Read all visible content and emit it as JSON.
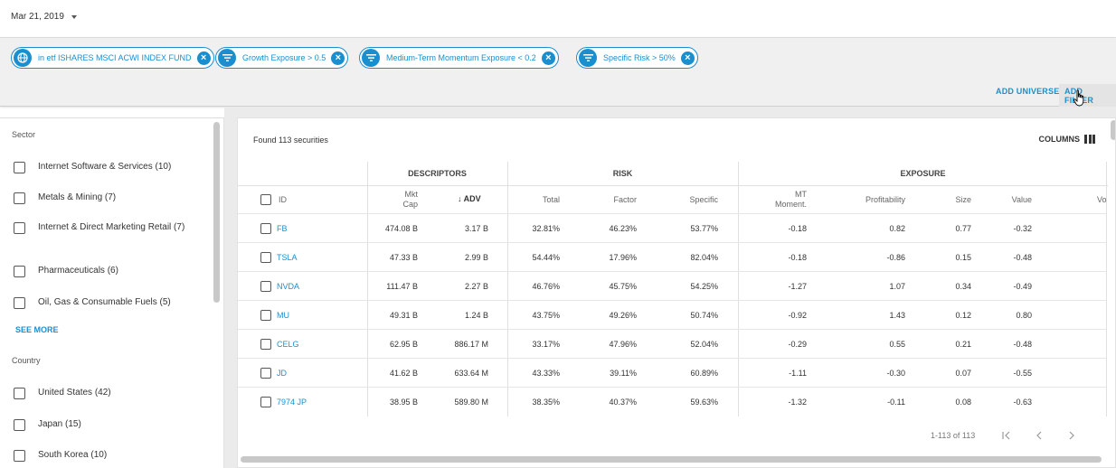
{
  "date_selector": {
    "value": "Mar 21, 2019"
  },
  "filters": [
    {
      "label": "in etf ISHARES MSCI ACWI INDEX FUND",
      "icon": "globe-icon"
    },
    {
      "label": "Growth Exposure > 0.5",
      "icon": "filter-icon"
    },
    {
      "label": "Medium-Term Momentum Exposure < 0.2",
      "icon": "filter-icon"
    },
    {
      "label": "Specific Risk > 50%",
      "icon": "filter-icon"
    }
  ],
  "actions": {
    "add_universe": "ADD UNIVERSE",
    "add_filter": "ADD FILTER"
  },
  "facets": {
    "sector_title": "Sector",
    "sector_items": [
      {
        "label": "Internet Software & Services (10)"
      },
      {
        "label": "Metals & Mining (7)"
      },
      {
        "label": "Internet & Direct Marketing Retail (7)"
      },
      {
        "label": "Pharmaceuticals (6)"
      },
      {
        "label": "Oil, Gas & Consumable Fuels (5)"
      }
    ],
    "see_more": "SEE MORE",
    "country_title": "Country",
    "country_items": [
      {
        "label": "United States (42)"
      },
      {
        "label": "Japan (15)"
      },
      {
        "label": "South Korea (10)"
      }
    ]
  },
  "results": {
    "found_text": "Found 113 securities",
    "columns_label": "COLUMNS",
    "groups": {
      "descriptors": "DESCRIPTORS",
      "risk": "RISK",
      "exposure": "EXPOSURE"
    },
    "headers": {
      "id": "ID",
      "mkt_cap_line1": "Mkt",
      "mkt_cap_line2": "Cap",
      "adv": "ADV",
      "adv_sort_arrow": "↓",
      "total": "Total",
      "factor": "Factor",
      "specific": "Specific",
      "mt_line1": "MT",
      "mt_line2": "Moment.",
      "profitability": "Profitability",
      "size": "Size",
      "value": "Value",
      "partial": "Vo"
    },
    "rows": [
      {
        "id": "FB",
        "mkt_cap": "474.08 B",
        "adv": "3.17 B",
        "total": "32.81%",
        "factor": "46.23%",
        "specific": "53.77%",
        "mt": "-0.18",
        "profitability": "0.82",
        "size": "0.77",
        "value": "-0.32"
      },
      {
        "id": "TSLA",
        "mkt_cap": "47.33 B",
        "adv": "2.99 B",
        "total": "54.44%",
        "factor": "17.96%",
        "specific": "82.04%",
        "mt": "-0.18",
        "profitability": "-0.86",
        "size": "0.15",
        "value": "-0.48"
      },
      {
        "id": "NVDA",
        "mkt_cap": "111.47 B",
        "adv": "2.27 B",
        "total": "46.76%",
        "factor": "45.75%",
        "specific": "54.25%",
        "mt": "-1.27",
        "profitability": "1.07",
        "size": "0.34",
        "value": "-0.49"
      },
      {
        "id": "MU",
        "mkt_cap": "49.31 B",
        "adv": "1.24 B",
        "total": "43.75%",
        "factor": "49.26%",
        "specific": "50.74%",
        "mt": "-0.92",
        "profitability": "1.43",
        "size": "0.12",
        "value": "0.80"
      },
      {
        "id": "CELG",
        "mkt_cap": "62.95 B",
        "adv": "886.17 M",
        "total": "33.17%",
        "factor": "47.96%",
        "specific": "52.04%",
        "mt": "-0.29",
        "profitability": "0.55",
        "size": "0.21",
        "value": "-0.48"
      },
      {
        "id": "JD",
        "mkt_cap": "41.62 B",
        "adv": "633.64 M",
        "total": "43.33%",
        "factor": "39.11%",
        "specific": "60.89%",
        "mt": "-1.11",
        "profitability": "-0.30",
        "size": "0.07",
        "value": "-0.55"
      },
      {
        "id": "7974 JP",
        "mkt_cap": "38.95 B",
        "adv": "589.80 M",
        "total": "38.35%",
        "factor": "40.37%",
        "specific": "59.63%",
        "mt": "-1.32",
        "profitability": "-0.11",
        "size": "0.08",
        "value": "-0.63"
      }
    ],
    "pager_text": "1-113 of 113"
  },
  "colors": {
    "accent": "#1a8fd0",
    "panel_bg": "#f0f0f0",
    "gutter_bg": "#ebebeb"
  }
}
